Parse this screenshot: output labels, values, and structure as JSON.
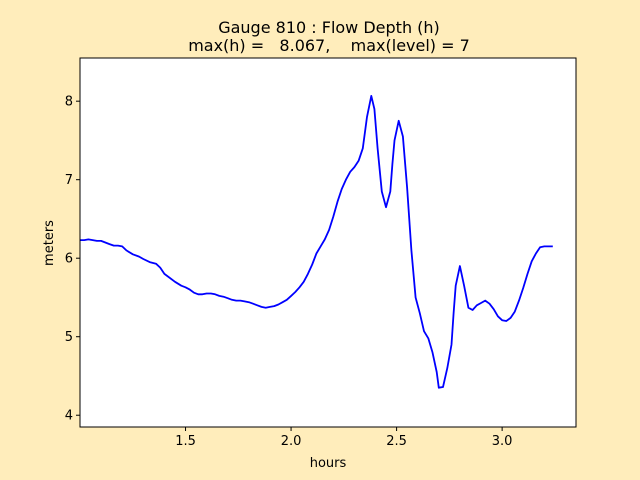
{
  "chart_data": {
    "type": "line",
    "title": "Gauge 810 : Flow Depth (h)",
    "subtitle": "max(h) =   8.067,    max(level) = 7",
    "xlabel": "hours",
    "ylabel": "meters",
    "xlim": [
      1.0,
      3.35
    ],
    "ylim": [
      3.85,
      8.55
    ],
    "xticks": [
      1.5,
      2.0,
      2.5,
      3.0
    ],
    "xtick_labels": [
      "1.5",
      "2.0",
      "2.5",
      "3.0"
    ],
    "yticks": [
      4,
      5,
      6,
      7,
      8
    ],
    "ytick_labels": [
      "4",
      "5",
      "6",
      "7",
      "8"
    ],
    "grid": false,
    "legend": "none",
    "series": [
      {
        "color": "#0000ff",
        "x": [
          1.0,
          1.02,
          1.04,
          1.06,
          1.08,
          1.1,
          1.12,
          1.14,
          1.16,
          1.18,
          1.2,
          1.22,
          1.25,
          1.28,
          1.3,
          1.33,
          1.36,
          1.38,
          1.4,
          1.42,
          1.45,
          1.48,
          1.5,
          1.52,
          1.54,
          1.56,
          1.58,
          1.6,
          1.62,
          1.64,
          1.66,
          1.68,
          1.7,
          1.72,
          1.74,
          1.76,
          1.78,
          1.8,
          1.82,
          1.84,
          1.86,
          1.88,
          1.9,
          1.92,
          1.94,
          1.96,
          1.98,
          2.0,
          2.02,
          2.04,
          2.06,
          2.08,
          2.1,
          2.12,
          2.14,
          2.16,
          2.18,
          2.2,
          2.22,
          2.24,
          2.26,
          2.28,
          2.3,
          2.32,
          2.34,
          2.36,
          2.38,
          2.395,
          2.41,
          2.43,
          2.45,
          2.47,
          2.48,
          2.49,
          2.51,
          2.53,
          2.55,
          2.57,
          2.59,
          2.61,
          2.63,
          2.65,
          2.67,
          2.69,
          2.7,
          2.72,
          2.74,
          2.76,
          2.77,
          2.78,
          2.8,
          2.82,
          2.84,
          2.86,
          2.88,
          2.9,
          2.92,
          2.94,
          2.96,
          2.98,
          3.0,
          3.02,
          3.04,
          3.06,
          3.08,
          3.1,
          3.12,
          3.14,
          3.16,
          3.18,
          3.2,
          3.22,
          3.24
        ],
        "y": [
          6.23,
          6.23,
          6.24,
          6.23,
          6.22,
          6.22,
          6.2,
          6.18,
          6.16,
          6.16,
          6.15,
          6.1,
          6.05,
          6.02,
          5.99,
          5.95,
          5.93,
          5.88,
          5.8,
          5.76,
          5.7,
          5.65,
          5.63,
          5.6,
          5.56,
          5.54,
          5.54,
          5.55,
          5.55,
          5.54,
          5.52,
          5.51,
          5.49,
          5.47,
          5.46,
          5.46,
          5.45,
          5.44,
          5.42,
          5.4,
          5.38,
          5.37,
          5.38,
          5.39,
          5.41,
          5.44,
          5.47,
          5.52,
          5.57,
          5.63,
          5.7,
          5.8,
          5.92,
          6.06,
          6.15,
          6.24,
          6.36,
          6.53,
          6.72,
          6.88,
          7.0,
          7.1,
          7.16,
          7.24,
          7.4,
          7.8,
          8.067,
          7.9,
          7.4,
          6.85,
          6.65,
          6.85,
          7.2,
          7.5,
          7.75,
          7.55,
          6.9,
          6.1,
          5.5,
          5.3,
          5.07,
          4.98,
          4.8,
          4.55,
          4.35,
          4.36,
          4.6,
          4.9,
          5.3,
          5.65,
          5.9,
          5.65,
          5.37,
          5.34,
          5.4,
          5.43,
          5.46,
          5.42,
          5.35,
          5.26,
          5.21,
          5.2,
          5.24,
          5.32,
          5.46,
          5.62,
          5.8,
          5.96,
          6.06,
          6.14,
          6.15,
          6.15,
          6.15
        ]
      }
    ]
  }
}
